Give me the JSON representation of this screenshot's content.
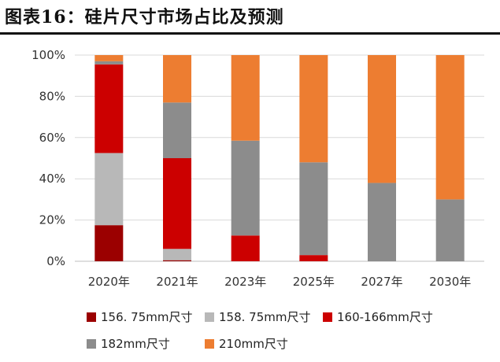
{
  "header": {
    "title": "图表16：硅片尺寸市场占比及预测"
  },
  "chart_data": {
    "type": "bar",
    "stacked": true,
    "categories": [
      "2020年",
      "2021年",
      "2023年",
      "2025年",
      "2027年",
      "2030年"
    ],
    "ylim": [
      0,
      100
    ],
    "yticks": [
      "0%",
      "20%",
      "40%",
      "60%",
      "80%",
      "100%"
    ],
    "grid": true,
    "legend": "bottom",
    "series": [
      {
        "name": "156. 75mm尺寸",
        "color": "#9b0000",
        "values": [
          17.5,
          0.5,
          0,
          0,
          0,
          0
        ]
      },
      {
        "name": "158. 75mm尺寸",
        "color": "#b8b8b8",
        "values": [
          35,
          5.5,
          0,
          0,
          0,
          0
        ]
      },
      {
        "name": "160-166mm尺寸",
        "color": "#cc0000",
        "values": [
          43,
          44,
          12.5,
          3,
          0,
          0
        ]
      },
      {
        "name": "182mm尺寸",
        "color": "#8c8c8c",
        "values": [
          1.5,
          27,
          46,
          45,
          38,
          30
        ]
      },
      {
        "name": "210mm尺寸",
        "color": "#ed7d31",
        "values": [
          3,
          23,
          41.5,
          52,
          62,
          70
        ]
      }
    ]
  }
}
